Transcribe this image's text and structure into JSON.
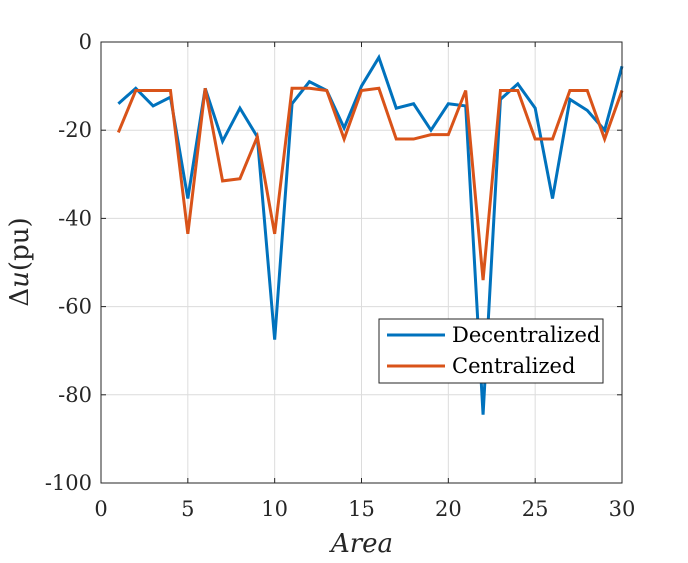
{
  "chart_data": {
    "type": "line",
    "title": "",
    "xlabel": "Area",
    "ylabel_parts": {
      "delta": "Δ",
      "var": "u",
      "unit": "(pu)"
    },
    "xlim": [
      0,
      30
    ],
    "ylim": [
      -100,
      0
    ],
    "xticks": [
      0,
      5,
      10,
      15,
      20,
      25,
      30
    ],
    "yticks": [
      0,
      -20,
      -40,
      -60,
      -80,
      -100
    ],
    "xtick_labels": [
      "0",
      "5",
      "10",
      "15",
      "20",
      "25",
      "30"
    ],
    "ytick_labels": [
      "0",
      "-20",
      "-40",
      "-60",
      "-80",
      "-100"
    ],
    "grid": true,
    "legend_position": "lower-right",
    "x": [
      1,
      2,
      3,
      4,
      5,
      6,
      7,
      8,
      9,
      10,
      11,
      12,
      13,
      14,
      15,
      16,
      17,
      18,
      19,
      20,
      21,
      22,
      23,
      24,
      25,
      26,
      27,
      28,
      29,
      30
    ],
    "series": [
      {
        "name": "Decentralized",
        "color": "#0072BD",
        "values": [
          -14,
          -10.5,
          -14.5,
          -12.5,
          -35.5,
          -10.5,
          -22.5,
          -15,
          -21.5,
          -67.5,
          -14,
          -9,
          -11,
          -19.5,
          -10,
          -3.5,
          -15,
          -14,
          -20,
          -14,
          -14.5,
          -84.5,
          -13,
          -9.5,
          -15,
          -35.5,
          -13,
          -15.5,
          -20,
          -5.5
        ]
      },
      {
        "name": "Centralized",
        "color": "#D95319",
        "values": [
          -20.5,
          -11,
          -11,
          -11,
          -43.5,
          -10.5,
          -31.5,
          -31,
          -21.5,
          -43.5,
          -10.5,
          -10.5,
          -11,
          -22,
          -11,
          -10.5,
          -22,
          -22,
          -21,
          -21,
          -11,
          -54,
          -11,
          -11,
          -22,
          -22,
          -11,
          -11,
          -22,
          -11
        ]
      }
    ]
  }
}
